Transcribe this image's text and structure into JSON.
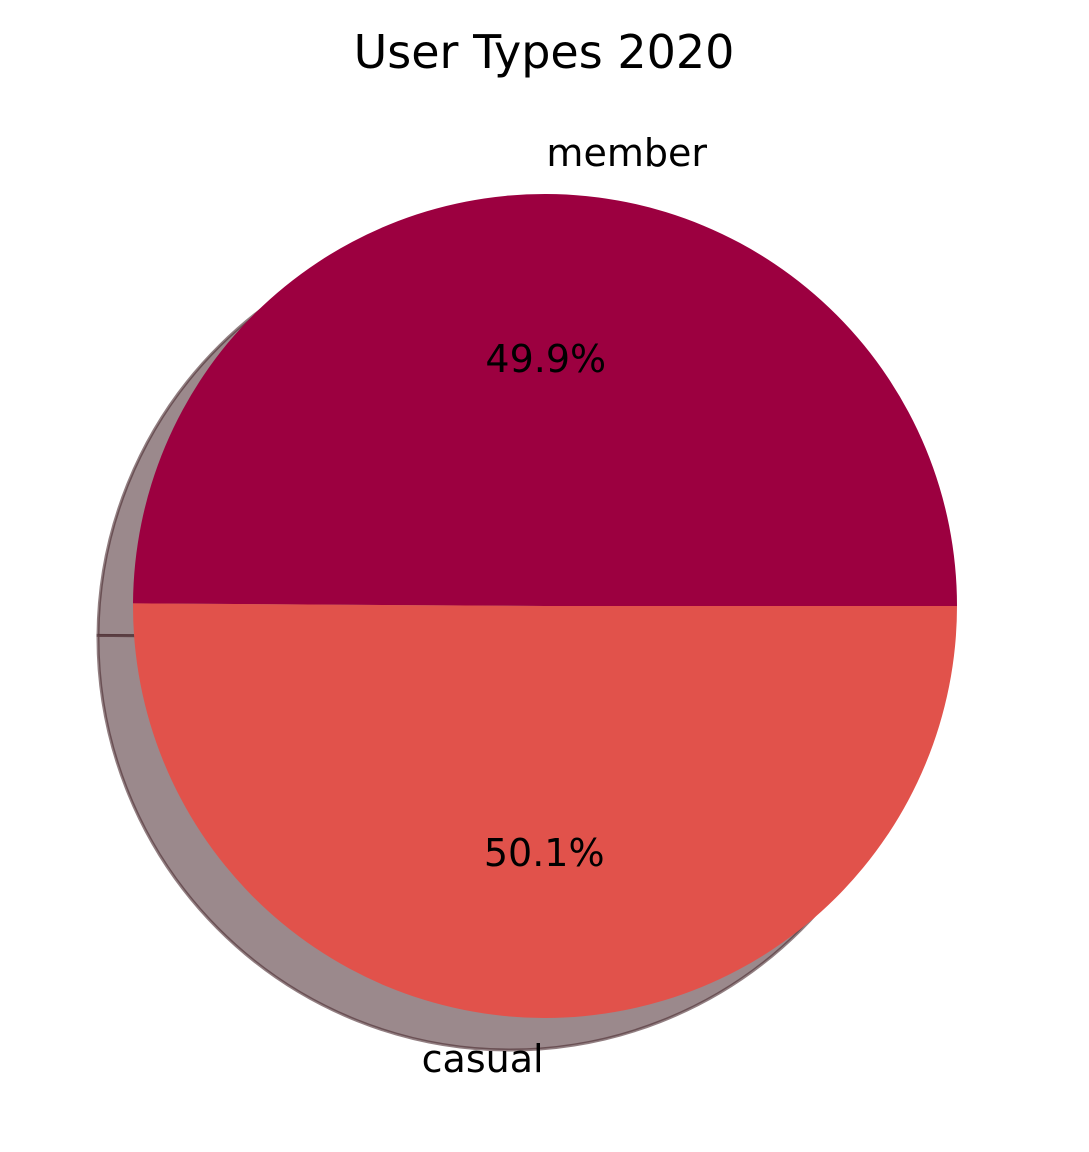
{
  "chart_data": {
    "type": "pie",
    "title": "User Types 2020",
    "slices": [
      {
        "label": "member",
        "value": 49.9,
        "pct_label": "49.9%",
        "color": "#9c0040"
      },
      {
        "label": "casual",
        "value": 50.1,
        "pct_label": "50.1%",
        "color": "#e1524b"
      }
    ],
    "shadow": true,
    "shadow_color": "#7a6166"
  }
}
